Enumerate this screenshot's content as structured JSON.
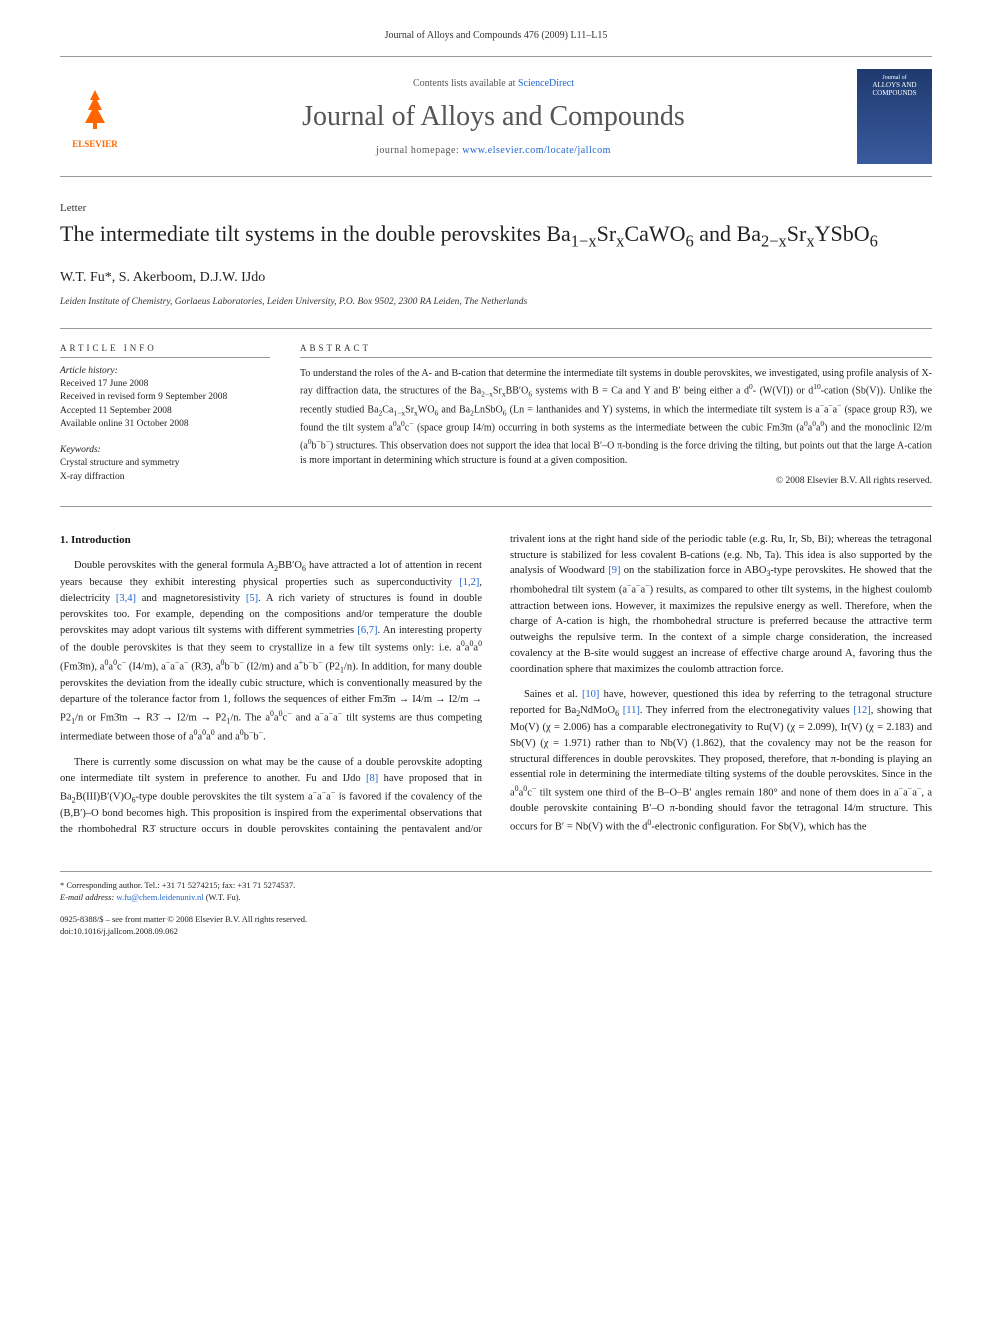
{
  "header": {
    "citation": "Journal of Alloys and Compounds 476 (2009) L11–L15"
  },
  "masthead": {
    "publisher": "ELSEVIER",
    "contents_prefix": "Contents lists available at ",
    "contents_link": "ScienceDirect",
    "journal_name": "Journal of Alloys and Compounds",
    "homepage_prefix": "journal homepage: ",
    "homepage_url": "www.elsevier.com/locate/jallcom",
    "cover_journal": "Journal of",
    "cover_title": "ALLOYS AND COMPOUNDS"
  },
  "article": {
    "type_label": "Letter",
    "title_html": "The intermediate tilt systems in the double perovskites Ba<sub>1−x</sub>Sr<sub>x</sub>CaWO<sub>6</sub> and Ba<sub>2−x</sub>Sr<sub>x</sub>YSbO<sub>6</sub>",
    "authors": "W.T. Fu*, S. Akerboom, D.J.W. IJdo",
    "affiliation": "Leiden Institute of Chemistry, Gorlaeus Laboratories, Leiden University, P.O. Box 9502, 2300 RA Leiden, The Netherlands"
  },
  "info": {
    "heading": "ARTICLE INFO",
    "history_label": "Article history:",
    "received": "Received 17 June 2008",
    "revised": "Received in revised form 9 September 2008",
    "accepted": "Accepted 11 September 2008",
    "online": "Available online 31 October 2008",
    "keywords_label": "Keywords:",
    "kw1": "Crystal structure and symmetry",
    "kw2": "X-ray diffraction"
  },
  "abstract": {
    "heading": "ABSTRACT",
    "text_html": "To understand the roles of the A- and B-cation that determine the intermediate tilt systems in double perovskites, we investigated, using profile analysis of X-ray diffraction data, the structures of the Ba<sub>2−x</sub>Sr<sub>x</sub>BB′O<sub>6</sub> systems with B = Ca and Y and B′ being either a d<sup>0</sup>- (W(VI)) or d<sup>10</sup>-cation (Sb(V)). Unlike the recently studied Ba<sub>2</sub>Ca<sub>1−x</sub>Sr<sub>x</sub>WO<sub>6</sub> and Ba<sub>2</sub>LnSbO<sub>6</sub> (Ln = lanthanides and Y) systems, in which the intermediate tilt system is a<sup>−</sup>a<sup>−</sup>a<sup>−</sup> (space group R3̄), we found the tilt system a<sup>0</sup>a<sup>0</sup>c<sup>−</sup> (space group I4/m) occurring in both systems as the intermediate between the cubic Fm3̄m (a<sup>0</sup>a<sup>0</sup>a<sup>0</sup>) and the monoclinic I2/m (a<sup>0</sup>b<sup>−</sup>b<sup>−</sup>) structures. This observation does not support the idea that local B′–O π-bonding is the force driving the tilting, but points out that the large A-cation is more important in determining which structure is found at a given composition.",
    "copyright": "© 2008 Elsevier B.V. All rights reserved."
  },
  "body": {
    "section_num": "1.",
    "section_title": "Introduction",
    "p1_html": "Double perovskites with the general formula A<sub>2</sub>BB′O<sub>6</sub> have attracted a lot of attention in recent years because they exhibit interesting physical properties such as superconductivity <span class=\"ref\">[1,2]</span>, dielectricity <span class=\"ref\">[3,4]</span> and magnetoresistivity <span class=\"ref\">[5]</span>. A rich variety of structures is found in double perovskites too. For example, depending on the compositions and/or temperature the double perovskites may adopt various tilt systems with different symmetries <span class=\"ref\">[6,7]</span>. An interesting property of the double perovskites is that they seem to crystallize in a few tilt systems only: i.e. a<sup>0</sup>a<sup>0</sup>a<sup>0</sup> (Fm3̄m), a<sup>0</sup>a<sup>0</sup>c<sup>−</sup> (I4/m), a<sup>−</sup>a<sup>−</sup>a<sup>−</sup> (R3̄), a<sup>0</sup>b<sup>−</sup>b<sup>−</sup> (I2/m) and a<sup>+</sup>b<sup>−</sup>b<sup>−</sup> (P2<sub>1</sub>/n). In addition, for many double perovskites the deviation from the ideally cubic structure, which is conventionally measured by the departure of the tolerance factor from 1, follows the sequences of either Fm3̄m → I4/m → I2/m → P2<sub>1</sub>/n or Fm3̄m → R3̄ → I2/m → P2<sub>1</sub>/n. The a<sup>0</sup>a<sup>0</sup>c<sup>−</sup> and a<sup>−</sup>a<sup>−</sup>a<sup>−</sup> tilt systems are thus competing intermediate between those of a<sup>0</sup>a<sup>0</sup>a<sup>0</sup> and a<sup>0</sup>b<sup>−</sup>b<sup>−</sup>.",
    "p2_html": "There is currently some discussion on what may be the cause of a double perovskite adopting one intermediate tilt system in preference to another. Fu and IJdo <span class=\"ref\">[8]</span> have proposed that in Ba<sub>2</sub>B(III)B′(V)O<sub>6</sub>-type double perovskites the tilt system a<sup>−</sup>a<sup>−</sup>a<sup>−</sup> is favored if the covalency of the (B,B′)–O bond becomes high. This proposition is inspired from the experimental observations that the rhombohedral R3̄ structure occurs in double perovskites containing the pentavalent and/or trivalent ions at the right hand side of the periodic table (e.g. Ru, Ir, Sb, Bi); whereas the tetragonal structure is stabilized for less covalent B-cations (e.g. Nb, Ta). This idea is also supported by the analysis of Woodward <span class=\"ref\">[9]</span> on the stabilization force in ABO<sub>3</sub>-type perovskites. He showed that the rhombohedral tilt system (a<sup>−</sup>a<sup>−</sup>a<sup>−</sup>) results, as compared to other tilt systems, in the highest coulomb attraction between ions. However, it maximizes the repulsive energy as well. Therefore, when the charge of A-cation is high, the rhombohedral structure is preferred because the attractive term outweighs the repulsive term. In the context of a simple charge consideration, the increased covalency at the B-site would suggest an increase of effective charge around A, favoring thus the coordination sphere that maximizes the coulomb attraction force.",
    "p3_html": "Saines et al. <span class=\"ref\">[10]</span> have, however, questioned this idea by referring to the tetragonal structure reported for Ba<sub>2</sub>NdMoO<sub>6</sub> <span class=\"ref\">[11]</span>. They inferred from the electronegativity values <span class=\"ref\">[12]</span>, showing that Mo(V) (χ = 2.006) has a comparable electronegativity to Ru(V) (χ = 2.099), Ir(V) (χ = 2.183) and Sb(V) (χ = 1.971) rather than to Nb(V) (1.862), that the covalency may not be the reason for structural differences in double perovskites. They proposed, therefore, that π-bonding is playing an essential role in determining the intermediate tilting systems of the double perovskites. Since in the a<sup>0</sup>a<sup>0</sup>c<sup>−</sup> tilt system one third of the B–O–B′ angles remain 180° and none of them does in a<sup>−</sup>a<sup>−</sup>a<sup>−</sup>, a double perovskite containing B′–O π-bonding should favor the tetragonal I4/m structure. This occurs for B′ = Nb(V) with the d<sup>0</sup>-electronic configuration. For Sb(V), which has the"
  },
  "footer": {
    "corr_label": "* Corresponding author. Tel.: +31 71 5274215; fax: +31 71 5274537.",
    "email_label": "E-mail address: ",
    "email": "w.fu@chem.leidenuniv.nl",
    "email_suffix": " (W.T. Fu).",
    "issn": "0925-8388/$ – see front matter © 2008 Elsevier B.V. All rights reserved.",
    "doi": "doi:10.1016/j.jallcom.2008.09.062"
  },
  "colors": {
    "link": "#2266cc",
    "elsevier_orange": "#ff6600",
    "cover_blue_top": "#1e3a6e",
    "cover_blue_bot": "#3a5a9e",
    "text": "#1a1a1a",
    "border": "#999999"
  }
}
